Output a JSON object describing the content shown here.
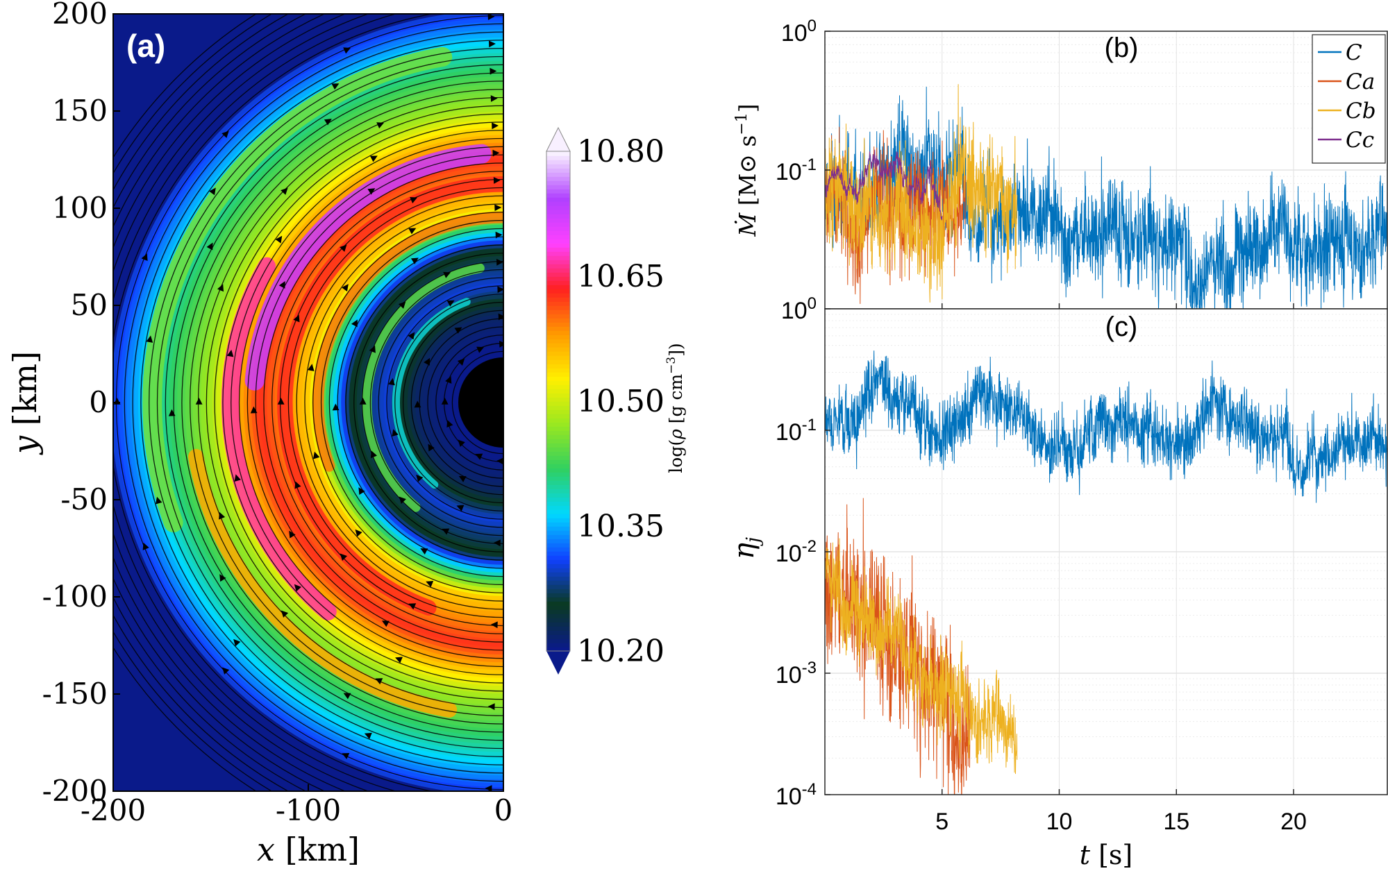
{
  "figure": {
    "panels": [
      "a",
      "b",
      "c"
    ]
  },
  "chart_data": [
    {
      "id": "a",
      "type": "heatmap",
      "panel_label": "(a)",
      "description": "Density map with streamlines",
      "xlabel_var": "x",
      "xlabel_unit": "[km]",
      "ylabel_var": "y",
      "ylabel_unit": "[km]",
      "xlim": [
        -200,
        0
      ],
      "ylim": [
        -200,
        200
      ],
      "xticks": [
        "-200",
        "-100",
        "0"
      ],
      "yticks": [
        "200",
        "150",
        "100",
        "50",
        "0",
        "-50",
        "-100",
        "-150",
        "-200"
      ],
      "colorbar": {
        "label_prefix": "log(",
        "label_rho": "ρ",
        "label_unit": " [g cm",
        "label_exp": "−3",
        "label_suffix": "])",
        "range": [
          10.2,
          10.8
        ],
        "ticks": [
          "10.80",
          "10.65",
          "10.50",
          "10.35",
          "10.20"
        ],
        "colors": [
          "#0a1a8a",
          "#0a3a20",
          "#1040ff",
          "#00d8ff",
          "#30d060",
          "#9ae820",
          "#fff000",
          "#ff9a00",
          "#ff2020",
          "#ff40ff",
          "#b040ff",
          "#f8f0ff"
        ]
      },
      "rings_km": [
        28,
        45,
        60,
        78,
        100,
        125,
        150,
        175
      ],
      "ring_densities": [
        10.2,
        10.22,
        10.3,
        10.25,
        10.55,
        10.63,
        10.48,
        10.4
      ]
    },
    {
      "id": "b",
      "type": "line",
      "panel_label": "(b)",
      "ylabel_dot": "Ṁ",
      "ylabel_unit": "[M⊙ s",
      "ylabel_exp": "−1",
      "ylabel_close": "]",
      "yscale": "log",
      "ylim": [
        0.01,
        1
      ],
      "xlim": [
        0,
        24
      ],
      "yticks": [
        {
          "base": "10",
          "exp": "0"
        },
        {
          "base": "10",
          "exp": "-1"
        }
      ],
      "ytick_values": [
        1,
        0.1
      ],
      "xticks": [
        "5",
        "10",
        "15",
        "20"
      ],
      "xtick_values": [
        5,
        10,
        15,
        20
      ],
      "legend_position": "top-right",
      "series": [
        {
          "name": "C",
          "color": "#0072bd",
          "t_end": 24,
          "median": 0.06,
          "spread": 0.8
        },
        {
          "name": "Ca",
          "color": "#d95319",
          "t_end": 6,
          "median": 0.085,
          "spread": 1.0
        },
        {
          "name": "Cb",
          "color": "#edb120",
          "t_end": 8.2,
          "median": 0.08,
          "spread": 0.9
        },
        {
          "name": "Cc",
          "color": "#7e2f8e",
          "t_end": 5,
          "median": 0.075,
          "spread": 0.12
        }
      ]
    },
    {
      "id": "c",
      "type": "line",
      "panel_label": "(c)",
      "ylabel_eta": "η",
      "ylabel_sub": "j",
      "yscale": "log",
      "ylim": [
        0.0001,
        1
      ],
      "xlim": [
        0,
        24
      ],
      "xlabel_var": "t",
      "xlabel_unit": "[s]",
      "yticks": [
        {
          "base": "10",
          "exp": "0"
        },
        {
          "base": "10",
          "exp": "-1"
        },
        {
          "base": "10",
          "exp": "-2"
        },
        {
          "base": "10",
          "exp": "-3"
        },
        {
          "base": "10",
          "exp": "-4"
        }
      ],
      "ytick_values": [
        1,
        0.1,
        0.01,
        0.001,
        0.0001
      ],
      "xticks": [
        "5",
        "10",
        "15",
        "20"
      ],
      "xtick_values": [
        5,
        10,
        15,
        20
      ],
      "series": [
        {
          "name": "C",
          "color": "#0072bd",
          "t_end": 24,
          "median": 0.12,
          "spread": 0.6
        },
        {
          "name": "Ca",
          "color": "#d95319",
          "t_end": 6.2,
          "median": 0.006,
          "spread": 1.4
        },
        {
          "name": "Cb",
          "color": "#edb120",
          "t_end": 8.2,
          "median": 0.006,
          "spread": 0.8
        }
      ]
    }
  ]
}
